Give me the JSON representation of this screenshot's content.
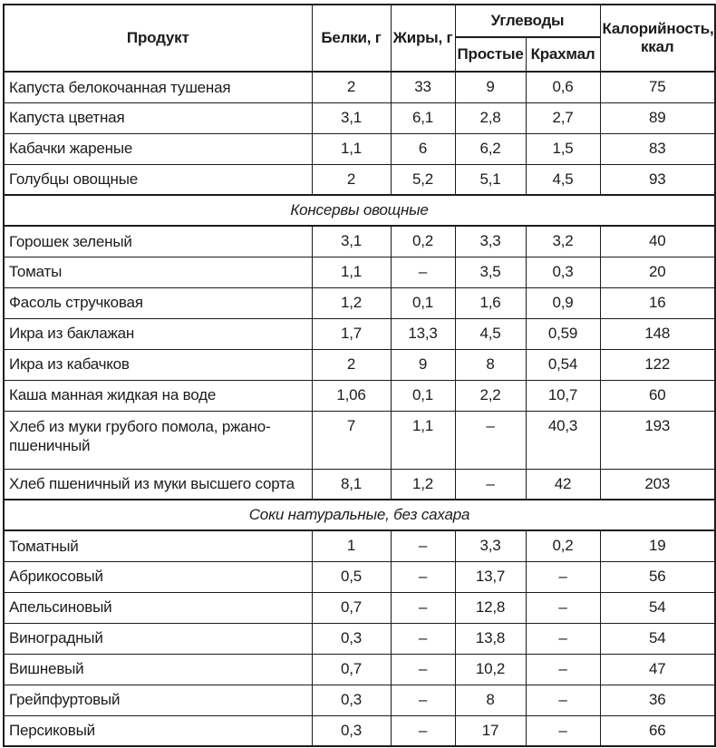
{
  "table": {
    "headers": {
      "product": "Продукт",
      "protein": "Белки, г",
      "fat": "Жиры, г",
      "carbs_group": "Углеводы",
      "carbs_simple": "Простые",
      "carbs_starch": "Крахмал",
      "calories": "Калорийность, ккал"
    },
    "rows": [
      {
        "type": "item",
        "product": "Капуста белокочанная тушеная",
        "protein": "2",
        "fat": "33",
        "simple": "9",
        "starch": "0,6",
        "calories": "75"
      },
      {
        "type": "item",
        "product": "Капуста цветная",
        "protein": "3,1",
        "fat": "6,1",
        "simple": "2,8",
        "starch": "2,7",
        "calories": "89"
      },
      {
        "type": "item",
        "product": "Кабачки жареные",
        "protein": "1,1",
        "fat": "6",
        "simple": "6,2",
        "starch": "1,5",
        "calories": "83"
      },
      {
        "type": "item",
        "product": "Голубцы овощные",
        "protein": "2",
        "fat": "5,2",
        "simple": "5,1",
        "starch": "4,5",
        "calories": "93"
      },
      {
        "type": "section",
        "label": "Консервы овощные"
      },
      {
        "type": "item",
        "product": "Горошек зеленый",
        "protein": "3,1",
        "fat": "0,2",
        "simple": "3,3",
        "starch": "3,2",
        "calories": "40"
      },
      {
        "type": "item",
        "product": "Томаты",
        "protein": "1,1",
        "fat": "–",
        "simple": "3,5",
        "starch": "0,3",
        "calories": "20"
      },
      {
        "type": "item",
        "product": "Фасоль стручковая",
        "protein": "1,2",
        "fat": "0,1",
        "simple": "1,6",
        "starch": "0,9",
        "calories": "16"
      },
      {
        "type": "item",
        "product": "Икра из баклажан",
        "protein": "1,7",
        "fat": "13,3",
        "simple": "4,5",
        "starch": "0,59",
        "calories": "148"
      },
      {
        "type": "item",
        "product": "Икра из кабачков",
        "protein": "2",
        "fat": "9",
        "simple": "8",
        "starch": "0,54",
        "calories": "122"
      },
      {
        "type": "item",
        "product": "Каша манная жидкая на воде",
        "protein": "1,06",
        "fat": "0,1",
        "simple": "2,2",
        "starch": "10,7",
        "calories": "60"
      },
      {
        "type": "item",
        "tall": true,
        "product": "Хлеб из муки грубого помола, ржано-пшеничный",
        "protein": "7",
        "fat": "1,1",
        "simple": "–",
        "starch": "40,3",
        "calories": "193"
      },
      {
        "type": "item",
        "product": "Хлеб пшеничный из муки высшего сорта",
        "protein": "8,1",
        "fat": "1,2",
        "simple": "–",
        "starch": "42",
        "calories": "203"
      },
      {
        "type": "section",
        "label": "Соки натуральные, без сахара"
      },
      {
        "type": "item",
        "product": "Томатный",
        "protein": "1",
        "fat": "–",
        "simple": "3,3",
        "starch": "0,2",
        "calories": "19"
      },
      {
        "type": "item",
        "product": "Абрикосовый",
        "protein": "0,5",
        "fat": "–",
        "simple": "13,7",
        "starch": "–",
        "calories": "56"
      },
      {
        "type": "item",
        "product": "Апельсиновый",
        "protein": "0,7",
        "fat": "–",
        "simple": "12,8",
        "starch": "–",
        "calories": "54"
      },
      {
        "type": "item",
        "product": "Виноградный",
        "protein": "0,3",
        "fat": "–",
        "simple": "13,8",
        "starch": "–",
        "calories": "54"
      },
      {
        "type": "item",
        "product": "Вишневый",
        "protein": "0,7",
        "fat": "–",
        "simple": "10,2",
        "starch": "–",
        "calories": "47"
      },
      {
        "type": "item",
        "product": "Грейпфуртовый",
        "protein": "0,3",
        "fat": "–",
        "simple": "8",
        "starch": "–",
        "calories": "36"
      },
      {
        "type": "item",
        "product": "Персиковый",
        "protein": "0,3",
        "fat": "–",
        "simple": "17",
        "starch": "–",
        "calories": "66"
      }
    ],
    "colors": {
      "border": "#1c1c1c",
      "text": "#1c1c1c",
      "background": "#ffffff"
    }
  }
}
